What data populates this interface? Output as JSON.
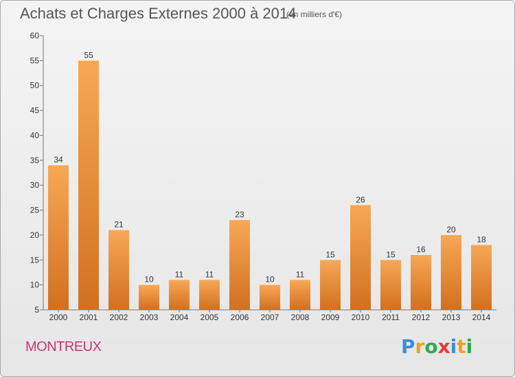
{
  "header": {
    "title": "Achats et Charges Externes 2000 à 2014",
    "unit": "(en milliers d'€)"
  },
  "footer": {
    "city": "MONTREUX",
    "logo_letters": [
      "P",
      "r",
      "o",
      "x",
      "i",
      "t",
      "i"
    ],
    "logo_colors": [
      "#3b8fd6",
      "#f0a11e",
      "#2fa84f",
      "#e03c3c",
      "#3b8fd6",
      "#f0a11e",
      "#2fa84f"
    ]
  },
  "colors": {
    "bar": "#e8883a",
    "bar_light": "#f7a857",
    "bar_dark": "#d2701f"
  },
  "chart_data": {
    "type": "bar",
    "title": "Achats et Charges Externes 2000 à 2014",
    "subtitle": "(en milliers d'€)",
    "categories": [
      "2000",
      "2001",
      "2002",
      "2003",
      "2004",
      "2005",
      "2006",
      "2007",
      "2008",
      "2009",
      "2010",
      "2011",
      "2012",
      "2013",
      "2014"
    ],
    "values": [
      34,
      55,
      21,
      10,
      11,
      11,
      23,
      10,
      11,
      15,
      26,
      15,
      16,
      20,
      18
    ],
    "ylim": [
      5,
      60
    ],
    "yticks": [
      5,
      10,
      15,
      20,
      25,
      30,
      35,
      40,
      45,
      50,
      55,
      60
    ],
    "grid": false,
    "xlabel": "",
    "ylabel": ""
  }
}
